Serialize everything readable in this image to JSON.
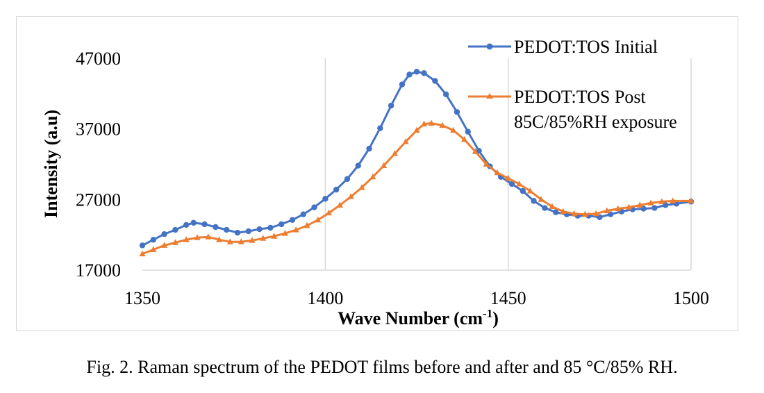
{
  "caption": "Fig. 2. Raman spectrum of the PEDOT films before and after and 85 °C/85% RH.",
  "chart_data": {
    "type": "line",
    "xlabel": "Wave Number (cm",
    "xlabel_superscript": "-1",
    "xlabel_suffix": ")",
    "ylabel": "Intensity (a.u)",
    "xlim": [
      1350,
      1500
    ],
    "ylim": [
      17000,
      47000
    ],
    "x_ticks": [
      1350,
      1400,
      1450,
      1500
    ],
    "y_ticks": [
      17000,
      27000,
      37000,
      47000
    ],
    "grid": "vertical",
    "legend_position": "top-right",
    "series": [
      {
        "name": "PEDOT:TOS Initial",
        "color": "#4472c4",
        "marker": "circle",
        "points": [
          [
            1350,
            20500
          ],
          [
            1353,
            21300
          ],
          [
            1356,
            22100
          ],
          [
            1359,
            22700
          ],
          [
            1362,
            23400
          ],
          [
            1364,
            23700
          ],
          [
            1367,
            23500
          ],
          [
            1370,
            23100
          ],
          [
            1373,
            22700
          ],
          [
            1376,
            22300
          ],
          [
            1379,
            22500
          ],
          [
            1382,
            22800
          ],
          [
            1385,
            23000
          ],
          [
            1388,
            23500
          ],
          [
            1391,
            24100
          ],
          [
            1394,
            24900
          ],
          [
            1397,
            25900
          ],
          [
            1400,
            27100
          ],
          [
            1403,
            28400
          ],
          [
            1406,
            29900
          ],
          [
            1409,
            31800
          ],
          [
            1412,
            34200
          ],
          [
            1415,
            37100
          ],
          [
            1418,
            40300
          ],
          [
            1421,
            43300
          ],
          [
            1423,
            44700
          ],
          [
            1425,
            45100
          ],
          [
            1427,
            44900
          ],
          [
            1430,
            43800
          ],
          [
            1433,
            41900
          ],
          [
            1436,
            39400
          ],
          [
            1439,
            36600
          ],
          [
            1442,
            33900
          ],
          [
            1445,
            31700
          ],
          [
            1448,
            30200
          ],
          [
            1451,
            29200
          ],
          [
            1454,
            28200
          ],
          [
            1457,
            26800
          ],
          [
            1460,
            25800
          ],
          [
            1463,
            25200
          ],
          [
            1466,
            24900
          ],
          [
            1469,
            24700
          ],
          [
            1472,
            24700
          ],
          [
            1475,
            24500
          ],
          [
            1478,
            24900
          ],
          [
            1481,
            25300
          ],
          [
            1484,
            25600
          ],
          [
            1487,
            25700
          ],
          [
            1490,
            25800
          ],
          [
            1493,
            26200
          ],
          [
            1496,
            26400
          ],
          [
            1500,
            26700
          ]
        ]
      },
      {
        "name": "PEDOT:TOS Post",
        "name_line2": "85C/85%RH exposure",
        "color": "#ed7d31",
        "marker": "triangle",
        "points": [
          [
            1350,
            19300
          ],
          [
            1353,
            19900
          ],
          [
            1356,
            20500
          ],
          [
            1359,
            20900
          ],
          [
            1362,
            21300
          ],
          [
            1365,
            21600
          ],
          [
            1368,
            21700
          ],
          [
            1371,
            21300
          ],
          [
            1374,
            21000
          ],
          [
            1377,
            21000
          ],
          [
            1380,
            21200
          ],
          [
            1383,
            21500
          ],
          [
            1386,
            21800
          ],
          [
            1389,
            22200
          ],
          [
            1392,
            22700
          ],
          [
            1395,
            23300
          ],
          [
            1398,
            24100
          ],
          [
            1401,
            25100
          ],
          [
            1404,
            26200
          ],
          [
            1407,
            27400
          ],
          [
            1410,
            28700
          ],
          [
            1413,
            30200
          ],
          [
            1416,
            31800
          ],
          [
            1419,
            33500
          ],
          [
            1422,
            35200
          ],
          [
            1425,
            36800
          ],
          [
            1427,
            37700
          ],
          [
            1429,
            37800
          ],
          [
            1432,
            37500
          ],
          [
            1435,
            36800
          ],
          [
            1438,
            35500
          ],
          [
            1441,
            33800
          ],
          [
            1444,
            32000
          ],
          [
            1447,
            30800
          ],
          [
            1450,
            30000
          ],
          [
            1453,
            29200
          ],
          [
            1456,
            28200
          ],
          [
            1459,
            27000
          ],
          [
            1462,
            26000
          ],
          [
            1465,
            25300
          ],
          [
            1468,
            25000
          ],
          [
            1471,
            24900
          ],
          [
            1474,
            25000
          ],
          [
            1477,
            25400
          ],
          [
            1480,
            25700
          ],
          [
            1483,
            25900
          ],
          [
            1486,
            26200
          ],
          [
            1489,
            26500
          ],
          [
            1492,
            26700
          ],
          [
            1495,
            26800
          ],
          [
            1500,
            26800
          ]
        ]
      }
    ]
  }
}
